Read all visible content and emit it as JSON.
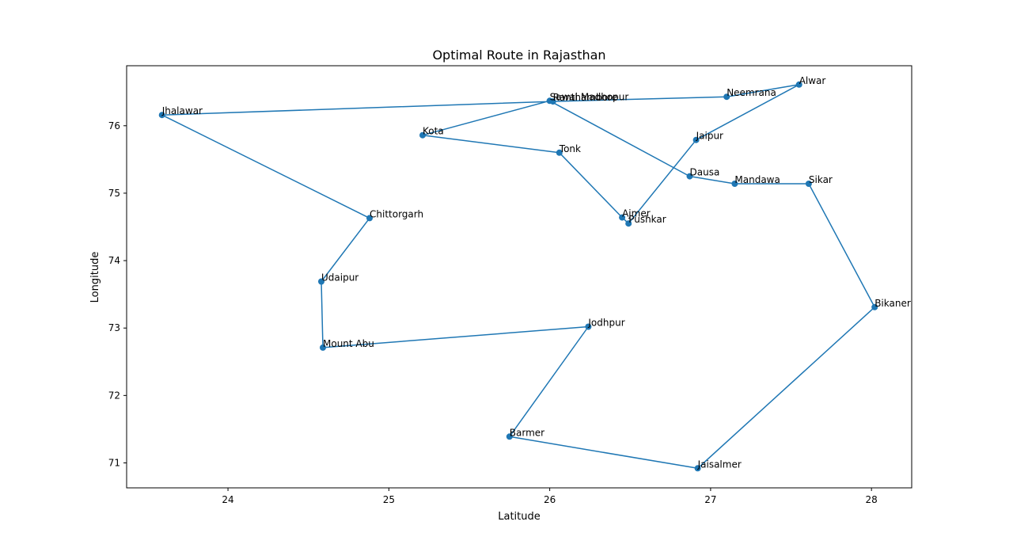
{
  "chart_data": {
    "type": "line",
    "title": "Optimal Route in Rajasthan",
    "xlabel": "Latitude",
    "ylabel": "Longitude",
    "xlim": [
      23.37,
      28.25
    ],
    "ylim": [
      70.63,
      76.89
    ],
    "xticks": [
      24,
      25,
      26,
      27,
      28
    ],
    "yticks": [
      71,
      72,
      73,
      74,
      75,
      76
    ],
    "grid": false,
    "color": "#1f77b4",
    "marker": "circle",
    "route": [
      {
        "name": "Jaipur",
        "x": 26.91,
        "y": 75.79
      },
      {
        "name": "Alwar",
        "x": 27.55,
        "y": 76.61
      },
      {
        "name": "Neemrana",
        "x": 27.1,
        "y": 76.43
      },
      {
        "name": "Ranthambore",
        "x": 26.02,
        "y": 76.36
      },
      {
        "name": "Jhalawar",
        "x": 23.59,
        "y": 76.16
      },
      {
        "name": "Chittorgarh",
        "x": 24.88,
        "y": 74.63
      },
      {
        "name": "Udaipur",
        "x": 24.58,
        "y": 73.69
      },
      {
        "name": "Mount Abu",
        "x": 24.59,
        "y": 72.71
      },
      {
        "name": "Jodhpur",
        "x": 26.24,
        "y": 73.02
      },
      {
        "name": "Barmer",
        "x": 25.75,
        "y": 71.39
      },
      {
        "name": "Jaisalmer",
        "x": 26.92,
        "y": 70.92
      },
      {
        "name": "Bikaner",
        "x": 28.02,
        "y": 73.31
      },
      {
        "name": "Sikar",
        "x": 27.61,
        "y": 75.14
      },
      {
        "name": "Mandawa",
        "x": 27.15,
        "y": 75.14
      },
      {
        "name": "Dausa",
        "x": 26.87,
        "y": 75.25
      },
      {
        "name": "Sawai Madhopur",
        "x": 26.0,
        "y": 76.37
      },
      {
        "name": "Kota",
        "x": 25.21,
        "y": 75.86
      },
      {
        "name": "Tonk",
        "x": 26.06,
        "y": 75.6
      },
      {
        "name": "Ajmer",
        "x": 26.45,
        "y": 74.64
      },
      {
        "name": "Pushkar",
        "x": 26.49,
        "y": 74.55
      },
      {
        "name": "Jaipur",
        "x": 26.91,
        "y": 75.79
      }
    ]
  }
}
